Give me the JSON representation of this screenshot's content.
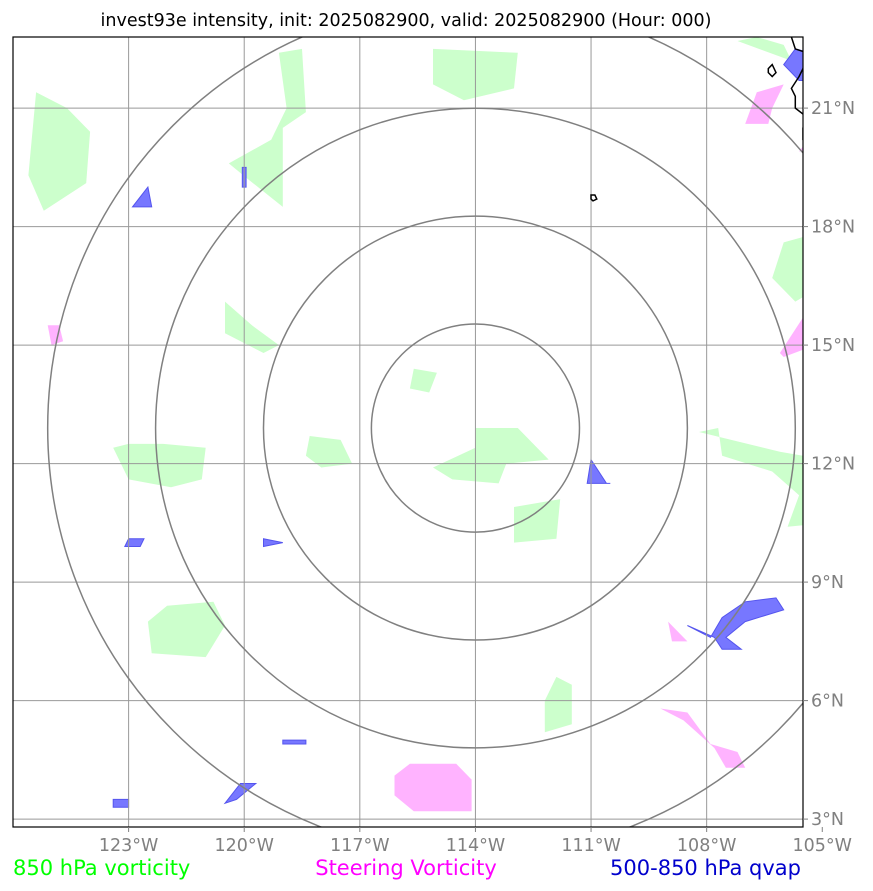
{
  "chart_data": {
    "type": "map",
    "title": "invest93e intensity, init: 2025082900, valid: 2025082900 (Hour: 000)",
    "extent": {
      "lon": [
        -126.0,
        -105.5
      ],
      "lat": [
        2.8,
        22.8
      ]
    },
    "center": {
      "lon": -114.0,
      "lat": 12.9
    },
    "ring_radii_deg": [
      2.7,
      5.5,
      8.3,
      11.1
    ],
    "lon_ticks": [
      {
        "value": -123,
        "label": "123°W"
      },
      {
        "value": -120,
        "label": "120°W"
      },
      {
        "value": -117,
        "label": "117°W"
      },
      {
        "value": -114,
        "label": "114°W"
      },
      {
        "value": -111,
        "label": "111°W"
      },
      {
        "value": -108,
        "label": "108°W"
      },
      {
        "value": -105,
        "label": "105°W"
      }
    ],
    "lat_ticks": [
      {
        "value": 3,
        "label": "3°N"
      },
      {
        "value": 6,
        "label": "6°N"
      },
      {
        "value": 9,
        "label": "9°N"
      },
      {
        "value": 12,
        "label": "12°N"
      },
      {
        "value": 15,
        "label": "15°N"
      },
      {
        "value": 18,
        "label": "18°N"
      },
      {
        "value": 21,
        "label": "21°N"
      }
    ],
    "legend": [
      {
        "label": "850 hPa vorticity",
        "color": "#00ff00"
      },
      {
        "label": "Steering Vorticity",
        "color": "#ff00ff"
      },
      {
        "label": "500-850 hPa qvap",
        "color": "#0000cc"
      }
    ],
    "layers": {
      "vorticity_850": {
        "color": "#ccffcc",
        "polygons": [
          [
            [
              -125.4,
              21.4
            ],
            [
              -124.6,
              21.0
            ],
            [
              -124.0,
              20.4
            ],
            [
              -124.1,
              19.1
            ],
            [
              -125.2,
              18.4
            ],
            [
              -125.6,
              19.3
            ]
          ],
          [
            [
              -119.1,
              22.4
            ],
            [
              -118.5,
              22.5
            ],
            [
              -118.4,
              20.9
            ],
            [
              -119.0,
              20.5
            ],
            [
              -119.0,
              18.5
            ],
            [
              -119.9,
              19.2
            ],
            [
              -120.4,
              19.6
            ],
            [
              -119.3,
              20.2
            ],
            [
              -118.9,
              21.0
            ]
          ],
          [
            [
              -115.1,
              22.5
            ],
            [
              -112.9,
              22.4
            ],
            [
              -113.0,
              21.5
            ],
            [
              -114.3,
              21.2
            ],
            [
              -115.1,
              21.6
            ]
          ],
          [
            [
              -123.0,
              12.5
            ],
            [
              -123.4,
              12.4
            ],
            [
              -123.0,
              11.6
            ],
            [
              -121.9,
              11.4
            ],
            [
              -121.1,
              11.6
            ],
            [
              -121.0,
              12.4
            ],
            [
              -122.1,
              12.5
            ]
          ],
          [
            [
              -118.3,
              12.7
            ],
            [
              -117.5,
              12.6
            ],
            [
              -117.2,
              12.0
            ],
            [
              -118.0,
              11.9
            ],
            [
              -118.4,
              12.2
            ]
          ],
          [
            [
              -115.6,
              14.4
            ],
            [
              -115.0,
              14.3
            ],
            [
              -115.2,
              13.8
            ],
            [
              -115.7,
              13.9
            ]
          ],
          [
            [
              -114.0,
              12.9
            ],
            [
              -112.9,
              12.9
            ],
            [
              -112.1,
              12.1
            ],
            [
              -113.2,
              12.0
            ],
            [
              -113.4,
              11.5
            ],
            [
              -114.6,
              11.6
            ],
            [
              -115.1,
              11.9
            ],
            [
              -114.0,
              12.4
            ]
          ],
          [
            [
              -113.0,
              10.9
            ],
            [
              -111.8,
              11.1
            ],
            [
              -111.9,
              10.1
            ],
            [
              -113.0,
              10.0
            ]
          ],
          [
            [
              -120.5,
              16.1
            ],
            [
              -120.5,
              15.3
            ],
            [
              -119.5,
              14.8
            ],
            [
              -119.1,
              15.0
            ],
            [
              -119.8,
              15.5
            ]
          ],
          [
            [
              -122.4,
              7.2
            ],
            [
              -122.5,
              8.0
            ],
            [
              -122.0,
              8.4
            ],
            [
              -120.8,
              8.5
            ],
            [
              -120.5,
              7.9
            ],
            [
              -121.0,
              7.1
            ]
          ],
          [
            [
              -111.9,
              6.6
            ],
            [
              -111.5,
              6.4
            ],
            [
              -111.5,
              5.4
            ],
            [
              -112.2,
              5.2
            ],
            [
              -112.2,
              6.0
            ]
          ],
          [
            [
              -106.0,
              17.6
            ],
            [
              -104.9,
              17.9
            ],
            [
              -105.0,
              16.5
            ],
            [
              -105.7,
              16.1
            ],
            [
              -106.3,
              16.7
            ]
          ],
          [
            [
              -108.2,
              12.8
            ],
            [
              -107.7,
              12.9
            ],
            [
              -107.6,
              12.2
            ],
            [
              -106.3,
              11.8
            ],
            [
              -105.6,
              11.2
            ],
            [
              -105.9,
              10.4
            ],
            [
              -104.9,
              10.5
            ],
            [
              -104.9,
              12.1
            ],
            [
              -106.1,
              12.3
            ]
          ],
          [
            [
              -107.2,
              22.7
            ],
            [
              -106.7,
              22.8
            ],
            [
              -106.0,
              22.6
            ],
            [
              -105.8,
              22.2
            ]
          ]
        ]
      },
      "steering_vorticity": {
        "color": "#ffb3ff",
        "polygons": [
          [
            [
              -106.7,
              21.4
            ],
            [
              -106.0,
              21.6
            ],
            [
              -106.3,
              21.0
            ],
            [
              -106.4,
              20.6
            ],
            [
              -107.0,
              20.6
            ]
          ],
          [
            [
              -105.6,
              19.9
            ],
            [
              -104.6,
              21.2
            ],
            [
              -104.5,
              22.3
            ],
            [
              -103.9,
              22.5
            ],
            [
              -104.0,
              21.6
            ],
            [
              -104.9,
              20.1
            ]
          ],
          [
            [
              -105.0,
              16.1
            ],
            [
              -104.3,
              16.3
            ],
            [
              -104.4,
              14.7
            ],
            [
              -104.9,
              15.1
            ],
            [
              -106.0,
              14.7
            ],
            [
              -106.1,
              14.8
            ],
            [
              -105.5,
              15.7
            ]
          ],
          [
            [
              -125.1,
              15.5
            ],
            [
              -125.0,
              15.0
            ],
            [
              -124.7,
              15.1
            ],
            [
              -124.8,
              15.5
            ]
          ],
          [
            [
              -116.1,
              4.1
            ],
            [
              -115.7,
              4.4
            ],
            [
              -114.5,
              4.4
            ],
            [
              -114.1,
              4.0
            ],
            [
              -114.1,
              3.2
            ],
            [
              -115.6,
              3.2
            ],
            [
              -116.1,
              3.6
            ]
          ],
          [
            [
              -109.2,
              5.8
            ],
            [
              -108.5,
              5.7
            ],
            [
              -107.9,
              4.9
            ],
            [
              -107.2,
              4.7
            ],
            [
              -107.0,
              4.3
            ],
            [
              -107.5,
              4.3
            ],
            [
              -107.8,
              4.8
            ],
            [
              -108.6,
              5.5
            ]
          ],
          [
            [
              -109.0,
              8.0
            ],
            [
              -108.5,
              7.5
            ],
            [
              -108.9,
              7.5
            ]
          ]
        ]
      },
      "qvap_500_850": {
        "color": "#7777ff",
        "polygons": [
          [
            [
              -105.7,
              22.5
            ],
            [
              -105.3,
              22.4
            ],
            [
              -105.0,
              22.0
            ],
            [
              -105.2,
              21.7
            ],
            [
              -105.6,
              21.7
            ],
            [
              -106.0,
              22.1
            ]
          ],
          [
            [
              -122.5,
              19.0
            ],
            [
              -122.4,
              18.5
            ],
            [
              -122.9,
              18.5
            ]
          ],
          [
            [
              -120.05,
              19.5
            ],
            [
              -119.95,
              19.5
            ],
            [
              -119.95,
              19.0
            ],
            [
              -120.05,
              19.0
            ]
          ],
          [
            [
              -111.0,
              12.1
            ],
            [
              -110.6,
              11.5
            ],
            [
              -110.5,
              11.5
            ],
            [
              -111.1,
              11.5
            ]
          ],
          [
            [
              -123.0,
              10.1
            ],
            [
              -122.6,
              10.1
            ],
            [
              -122.7,
              9.9
            ],
            [
              -123.1,
              9.9
            ]
          ],
          [
            [
              -119.5,
              10.1
            ],
            [
              -119.0,
              10.0
            ],
            [
              -119.5,
              9.9
            ]
          ],
          [
            [
              -119.0,
              5.0
            ],
            [
              -118.4,
              5.0
            ],
            [
              -118.4,
              4.9
            ],
            [
              -119.0,
              4.9
            ]
          ],
          [
            [
              -120.1,
              3.9
            ],
            [
              -119.7,
              3.9
            ],
            [
              -120.2,
              3.5
            ],
            [
              -120.5,
              3.4
            ]
          ],
          [
            [
              -123.4,
              3.5
            ],
            [
              -123.0,
              3.5
            ],
            [
              -123.0,
              3.3
            ],
            [
              -123.4,
              3.3
            ]
          ],
          [
            [
              -108.5,
              7.9
            ],
            [
              -107.9,
              7.6
            ],
            [
              -107.6,
              8.1
            ],
            [
              -107.0,
              8.5
            ],
            [
              -106.2,
              8.6
            ],
            [
              -106.0,
              8.3
            ],
            [
              -107.0,
              8.0
            ],
            [
              -107.5,
              7.6
            ],
            [
              -107.1,
              7.3
            ],
            [
              -107.6,
              7.3
            ],
            [
              -107.8,
              7.6
            ]
          ],
          [
            [
              -104.9,
              22.0
            ],
            [
              -104.8,
              22.0
            ],
            [
              -104.9,
              21.9
            ]
          ]
        ]
      }
    },
    "coastline": [
      [
        -105.8,
        22.8
      ],
      [
        -105.7,
        22.5
      ],
      [
        -105.4,
        22.4
      ],
      [
        -105.5,
        22.0
      ],
      [
        -105.6,
        21.8
      ],
      [
        -105.8,
        21.5
      ],
      [
        -105.7,
        21.3
      ],
      [
        -105.7,
        21.0
      ],
      [
        -105.3,
        20.7
      ],
      [
        -105.5,
        20.5
      ],
      [
        -105.5,
        20.2
      ],
      [
        -105.3,
        20.0
      ],
      [
        -105.1,
        19.7
      ],
      [
        -104.9,
        19.5
      ],
      [
        -104.3,
        19.1
      ],
      [
        -103.9,
        18.9
      ]
    ],
    "islands": [
      [
        [
          -106.4,
          22.0
        ],
        [
          -106.3,
          22.1
        ],
        [
          -106.2,
          21.9
        ],
        [
          -106.3,
          21.8
        ],
        [
          -106.4,
          21.9
        ]
      ],
      [
        [
          -111.0,
          18.8
        ],
        [
          -110.9,
          18.8
        ],
        [
          -110.85,
          18.7
        ],
        [
          -110.95,
          18.65
        ],
        [
          -111.0,
          18.7
        ]
      ]
    ]
  }
}
